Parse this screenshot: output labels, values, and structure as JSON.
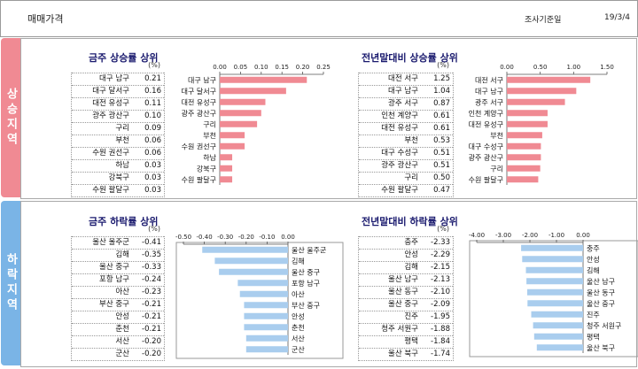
{
  "header": {
    "title": "매매가격",
    "source": "조사기준일",
    "date": "19/3/4"
  },
  "sections": {
    "up_label": "상승지역",
    "down_label": "하락지역"
  },
  "unit": "(%)",
  "chart_data": [
    {
      "type": "bar",
      "title": "금주 상승률 상위",
      "categories": [
        "대구 남구",
        "대구 달서구",
        "대전 유성구",
        "광주 광산구",
        "구리",
        "부천",
        "수원 권선구",
        "하남",
        "강북구",
        "수원 팔달구"
      ],
      "values": [
        0.21,
        0.16,
        0.11,
        0.1,
        0.09,
        0.06,
        0.06,
        0.03,
        0.03,
        0.03
      ],
      "xlim": [
        0,
        0.25
      ],
      "ticks": [
        "0.00",
        "0.05",
        "0.10",
        "0.15",
        "0.20",
        "0.25"
      ],
      "bar_color": "#f08a93"
    },
    {
      "type": "bar",
      "title": "전년말대비 상승률 상위",
      "categories": [
        "대전 서구",
        "대구 남구",
        "광주 서구",
        "인천 계양구",
        "대전 유성구",
        "부천",
        "대구 수성구",
        "광주 광산구",
        "구리",
        "수원 팔달구"
      ],
      "values": [
        1.25,
        1.04,
        0.87,
        0.61,
        0.61,
        0.53,
        0.51,
        0.51,
        0.5,
        0.47
      ],
      "xlim": [
        0,
        1.5
      ],
      "ticks": [
        "0.00",
        "0.50",
        "1.00",
        "1.50"
      ],
      "bar_color": "#f08a93"
    },
    {
      "type": "bar",
      "title": "금주 하락률 상위",
      "categories": [
        "울산 울주군",
        "김해",
        "울산 중구",
        "포항 남구",
        "아산",
        "부산 중구",
        "안성",
        "춘천",
        "서산",
        "군산"
      ],
      "values": [
        -0.41,
        -0.35,
        -0.33,
        -0.24,
        -0.23,
        -0.21,
        -0.21,
        -0.21,
        -0.2,
        -0.2
      ],
      "xlim": [
        -0.5,
        0
      ],
      "ticks": [
        "-0.50",
        "-0.40",
        "-0.30",
        "-0.20",
        "-0.10",
        "0.00"
      ],
      "bar_color": "#a9cdee"
    },
    {
      "type": "bar",
      "title": "전년말대비 하락률 상위",
      "categories": [
        "충주",
        "안성",
        "김해",
        "울산 남구",
        "울산 동구",
        "울산 중구",
        "진주",
        "청주 서원구",
        "평택",
        "울산 북구"
      ],
      "values": [
        -2.33,
        -2.29,
        -2.15,
        -2.13,
        -2.1,
        -2.09,
        -1.95,
        -1.88,
        -1.84,
        -1.74
      ],
      "xlim": [
        -4,
        0
      ],
      "ticks": [
        "-4.00",
        "-3.00",
        "-2.00",
        "-1.00",
        "0.00"
      ],
      "bar_color": "#a9cdee"
    }
  ]
}
